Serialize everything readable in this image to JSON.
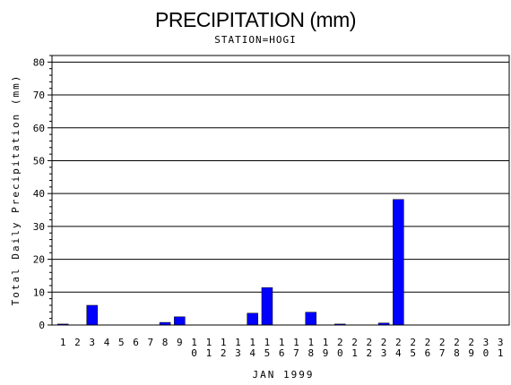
{
  "chart_data": {
    "type": "bar",
    "title": "PRECIPITATION (mm)",
    "subtitle": "STATION=HOGI",
    "xlabel": "JAN 1999",
    "ylabel": "Total Daily Precipitation (mm)",
    "ylim": [
      0,
      82
    ],
    "yticks": [
      0,
      10,
      20,
      30,
      40,
      50,
      60,
      70,
      80
    ],
    "grid": true,
    "bar_color": "#0000ff",
    "categories": [
      "1",
      "2",
      "3",
      "4",
      "5",
      "6",
      "7",
      "8",
      "9",
      "10",
      "11",
      "12",
      "13",
      "14",
      "15",
      "16",
      "17",
      "18",
      "19",
      "20",
      "21",
      "22",
      "23",
      "24",
      "25",
      "26",
      "27",
      "28",
      "29",
      "30",
      "31"
    ],
    "values": [
      0.3,
      0,
      6.0,
      0,
      0,
      0,
      0,
      0.8,
      2.5,
      0,
      0,
      0,
      0,
      3.6,
      11.4,
      0,
      0,
      3.9,
      0,
      0.3,
      0,
      0,
      0.6,
      38.2,
      0,
      0,
      0,
      0,
      0,
      0,
      0
    ]
  }
}
